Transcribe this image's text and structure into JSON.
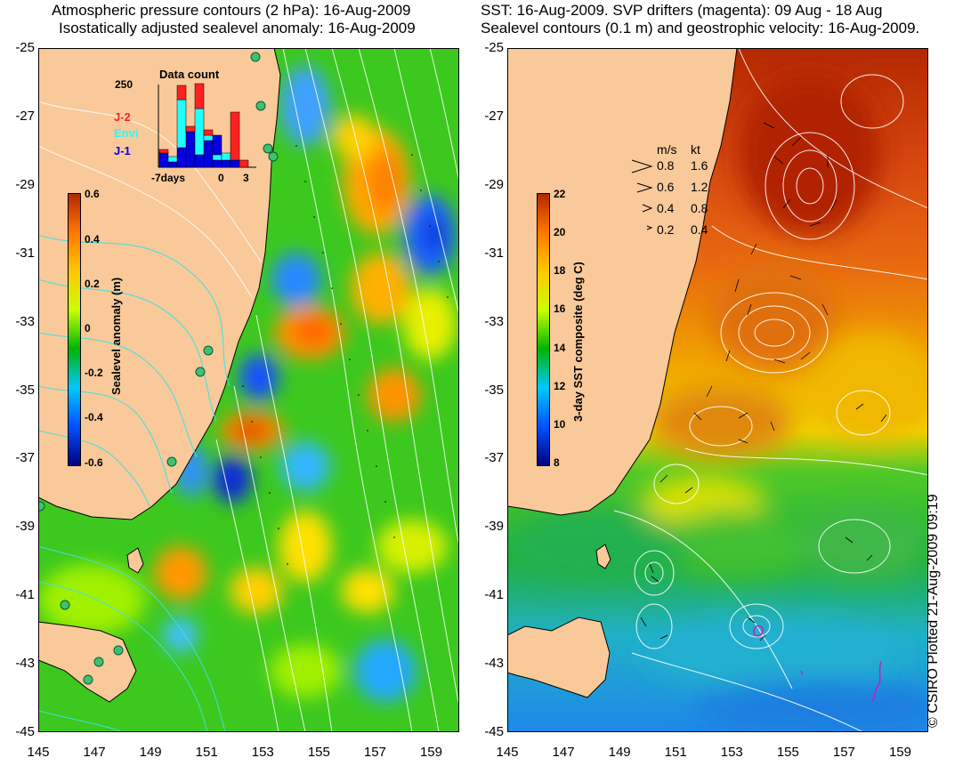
{
  "left_panel": {
    "title_line1": "Atmospheric pressure contours (2 hPa): 16-Aug-2009",
    "title_line2": "Isostatically adjusted sealevel anomaly: 16-Aug-2009",
    "colorbar": {
      "label": "Sealevel anomaly (m)",
      "ticks": [
        "0.6",
        "0.4",
        "0.2",
        "0",
        "-0.2",
        "-0.4",
        "-0.6"
      ],
      "range": [
        -0.6,
        0.6
      ],
      "colors": [
        "#000080",
        "#0050ff",
        "#00c8ff",
        "#00b400",
        "#c8ff00",
        "#ffc800",
        "#ff7800",
        "#b42800"
      ]
    },
    "histogram": {
      "title": "Data count",
      "ymax_label": "250",
      "x_labels": [
        "-7days",
        "0",
        "3"
      ],
      "series": [
        {
          "name": "J-2",
          "color": "#ff2020"
        },
        {
          "name": "Envi",
          "color": "#20ffff"
        },
        {
          "name": "J-1",
          "color": "#0000e0"
        }
      ]
    }
  },
  "right_panel": {
    "title_line1": "SST: 16-Aug-2009. SVP drifters (magenta): 09 Aug - 18 Aug",
    "title_line2": "Sealevel contours (0.1 m) and geostrophic velocity: 16-Aug-2009.",
    "colorbar": {
      "label": "3-day SST composite (deg C)",
      "ticks": [
        "22",
        "20",
        "18",
        "16",
        "14",
        "12",
        "10",
        "8"
      ],
      "range": [
        8,
        22
      ],
      "colors": [
        "#000080",
        "#0050ff",
        "#00c8ff",
        "#00b400",
        "#c8ff00",
        "#ffc800",
        "#ff7800",
        "#b42800"
      ]
    },
    "velocity_legend": {
      "header_ms": "m/s",
      "header_kt": "kt",
      "rows": [
        {
          "ms": "0.8",
          "kt": "1.6"
        },
        {
          "ms": "0.6",
          "kt": "1.2"
        },
        {
          "ms": "0.4",
          "kt": "0.8"
        },
        {
          "ms": "0.2",
          "kt": "0.4"
        }
      ]
    }
  },
  "axes": {
    "y_ticks": [
      "-25",
      "-27",
      "-29",
      "-31",
      "-33",
      "-35",
      "-37",
      "-39",
      "-41",
      "-43",
      "-45"
    ],
    "x_ticks": [
      "145",
      "147",
      "149",
      "151",
      "153",
      "155",
      "157",
      "159"
    ],
    "lat_range": [
      -45,
      -25
    ],
    "lon_range": [
      145,
      160
    ]
  },
  "credit": "© CSIRO Plotted 21-Aug-2009 09:19",
  "colors": {
    "land": "#f9c99a",
    "coast": "#000000",
    "contour": "#ffffff",
    "pressure_contour": "#40e0e0"
  }
}
